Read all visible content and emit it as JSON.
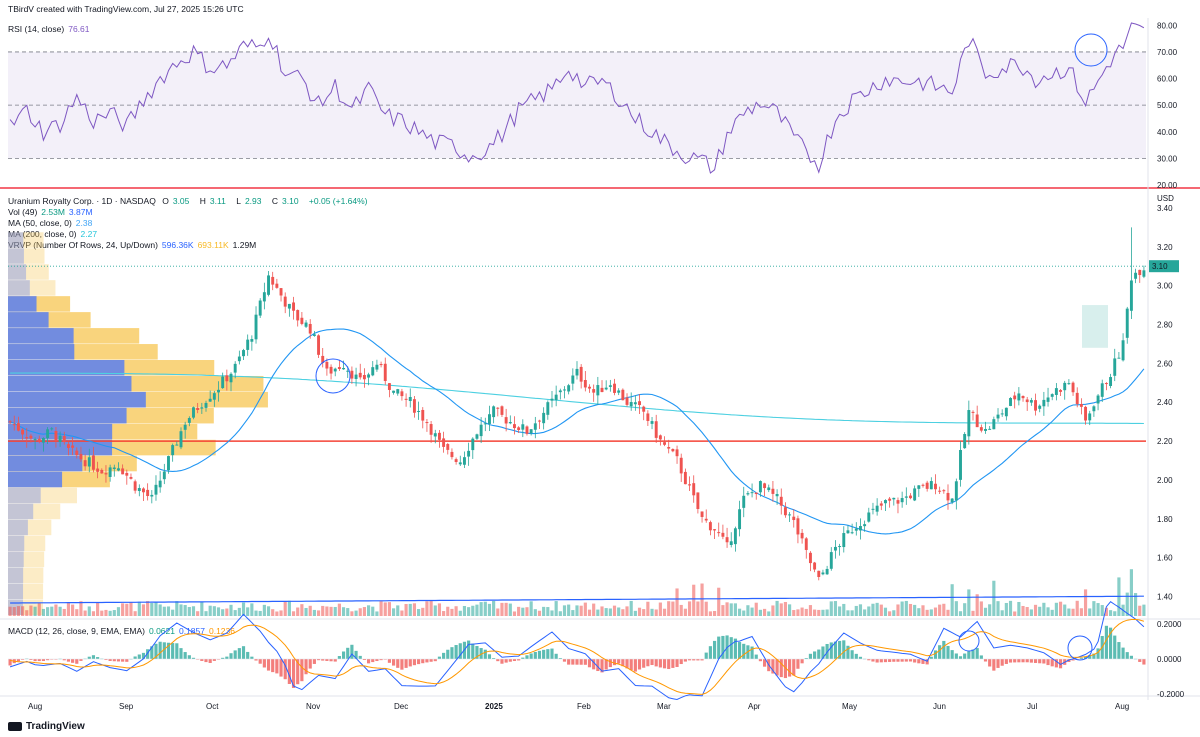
{
  "credit": "TBirdV created with TradingView.com, Jul 27, 2025 15:26 UTC",
  "brand": "TradingView",
  "rsi_panel": {
    "label": "RSI (14, close)",
    "value": "76.61",
    "ticks": [
      "80.00",
      "70.00",
      "60.00",
      "50.00",
      "40.00",
      "30.00",
      "20.00"
    ],
    "range": [
      20,
      82
    ],
    "overbought": 70,
    "mid": 50,
    "oversold": 30
  },
  "main_panel": {
    "title": "Uranium Royalty Corp. · 1D · NASDAQ",
    "ohlc": {
      "o_label": "O",
      "o": "3.05",
      "h_label": "H",
      "h": "3.11",
      "l_label": "L",
      "l": "2.93",
      "c_label": "C",
      "c": "3.10",
      "change": "+0.05 (+1.64%)"
    },
    "vol": {
      "label": "Vol (49)",
      "v1": "2.53M",
      "v2": "3.87M"
    },
    "ma50": {
      "label": "MA (50, close, 0)",
      "value": "2.38"
    },
    "ma200": {
      "label": "MA (200, close, 0)",
      "value": "2.27"
    },
    "vrvp": {
      "label": "VRVP (Number Of Rows, 24, Up/Down)",
      "up": "596.36K",
      "down": "693.11K",
      "total": "1.29M"
    },
    "currency": "USD",
    "last_price": "3.10",
    "price_ticks": [
      "3.40",
      "3.20",
      "3.00",
      "2.80",
      "2.60",
      "2.40",
      "2.20",
      "2.00",
      "1.80",
      "1.60",
      "1.40"
    ],
    "support_level": 2.2
  },
  "macd_panel": {
    "label": "MACD (12, 26, close, 9, EMA, EMA)",
    "v1": "0.0621",
    "v2": "0.1857",
    "v3": "0.1236",
    "ticks": [
      "0.2000",
      "0.0000",
      "-0.2000"
    ]
  },
  "x_axis": [
    "Aug",
    "Sep",
    "Oct",
    "Nov",
    "Dec",
    "2025",
    "Feb",
    "Mar",
    "Apr",
    "May",
    "Jun",
    "Jul",
    "Aug"
  ],
  "colors": {
    "up": "#26a69a",
    "down": "#ef5350",
    "rsi": "#7e57c2",
    "ma50": "#2196f3",
    "ma200": "#4dd0e1",
    "support": "#f44336",
    "macd": "#2962ff",
    "signal": "#ff9800",
    "vrvp_up": "#5b7ff0",
    "vrvp_down": "#f7c95c"
  },
  "chart_data": {
    "type": "candlestick",
    "price_anchors": [
      [
        0,
        2.3
      ],
      [
        6,
        2.2
      ],
      [
        10,
        2.25
      ],
      [
        14,
        2.15
      ],
      [
        18,
        2.1
      ],
      [
        22,
        2.05
      ],
      [
        26,
        2.08
      ],
      [
        30,
        1.97
      ],
      [
        34,
        1.9
      ],
      [
        38,
        2.1
      ],
      [
        42,
        2.3
      ],
      [
        46,
        2.4
      ],
      [
        50,
        2.48
      ],
      [
        54,
        2.58
      ],
      [
        58,
        2.75
      ],
      [
        62,
        3.05
      ],
      [
        65,
        2.95
      ],
      [
        68,
        2.85
      ],
      [
        72,
        2.78
      ],
      [
        76,
        2.55
      ],
      [
        80,
        2.6
      ],
      [
        84,
        2.5
      ],
      [
        88,
        2.6
      ],
      [
        92,
        2.45
      ],
      [
        96,
        2.4
      ],
      [
        100,
        2.3
      ],
      [
        104,
        2.15
      ],
      [
        108,
        2.1
      ],
      [
        112,
        2.25
      ],
      [
        116,
        2.35
      ],
      [
        120,
        2.3
      ],
      [
        124,
        2.25
      ],
      [
        128,
        2.35
      ],
      [
        132,
        2.45
      ],
      [
        136,
        2.55
      ],
      [
        140,
        2.45
      ],
      [
        144,
        2.5
      ],
      [
        148,
        2.4
      ],
      [
        152,
        2.35
      ],
      [
        156,
        2.2
      ],
      [
        160,
        2.1
      ],
      [
        164,
        1.9
      ],
      [
        166,
        1.8
      ],
      [
        169,
        1.75
      ],
      [
        172,
        1.65
      ],
      [
        176,
        1.9
      ],
      [
        180,
        1.97
      ],
      [
        184,
        1.9
      ],
      [
        188,
        1.78
      ],
      [
        191,
        1.62
      ],
      [
        194,
        1.48
      ],
      [
        198,
        1.65
      ],
      [
        202,
        1.75
      ],
      [
        206,
        1.82
      ],
      [
        210,
        1.88
      ],
      [
        214,
        1.9
      ],
      [
        218,
        1.95
      ],
      [
        222,
        1.98
      ],
      [
        226,
        1.9
      ],
      [
        230,
        2.35
      ],
      [
        234,
        2.25
      ],
      [
        238,
        2.35
      ],
      [
        242,
        2.45
      ],
      [
        246,
        2.38
      ],
      [
        250,
        2.45
      ],
      [
        254,
        2.5
      ],
      [
        258,
        2.3
      ],
      [
        260,
        2.4
      ],
      [
        264,
        2.55
      ],
      [
        267,
        2.7
      ],
      [
        269,
        3.05
      ],
      [
        272,
        3.1
      ]
    ],
    "rsi_anchors": [
      [
        0,
        42
      ],
      [
        4,
        48
      ],
      [
        8,
        40
      ],
      [
        12,
        43
      ],
      [
        16,
        53
      ],
      [
        20,
        44
      ],
      [
        24,
        47
      ],
      [
        28,
        42
      ],
      [
        32,
        52
      ],
      [
        36,
        60
      ],
      [
        40,
        66
      ],
      [
        44,
        70
      ],
      [
        48,
        64
      ],
      [
        52,
        65
      ],
      [
        56,
        72
      ],
      [
        60,
        72
      ],
      [
        62,
        78
      ],
      [
        66,
        62
      ],
      [
        70,
        60
      ],
      [
        74,
        50
      ],
      [
        78,
        57
      ],
      [
        82,
        48
      ],
      [
        86,
        56
      ],
      [
        90,
        46
      ],
      [
        94,
        44
      ],
      [
        98,
        40
      ],
      [
        102,
        36
      ],
      [
        106,
        35
      ],
      [
        110,
        31
      ],
      [
        114,
        33
      ],
      [
        118,
        39
      ],
      [
        122,
        48
      ],
      [
        126,
        52
      ],
      [
        130,
        56
      ],
      [
        134,
        64
      ],
      [
        138,
        57
      ],
      [
        142,
        59
      ],
      [
        146,
        53
      ],
      [
        150,
        45
      ],
      [
        154,
        40
      ],
      [
        158,
        35
      ],
      [
        162,
        31
      ],
      [
        166,
        29
      ],
      [
        169,
        26
      ],
      [
        172,
        39
      ],
      [
        176,
        47
      ],
      [
        180,
        51
      ],
      [
        184,
        47
      ],
      [
        188,
        38
      ],
      [
        191,
        32
      ],
      [
        194,
        28
      ],
      [
        198,
        45
      ],
      [
        202,
        52
      ],
      [
        206,
        56
      ],
      [
        210,
        60
      ],
      [
        214,
        59
      ],
      [
        218,
        59
      ],
      [
        222,
        57
      ],
      [
        226,
        55
      ],
      [
        230,
        75
      ],
      [
        234,
        62
      ],
      [
        238,
        64
      ],
      [
        242,
        66
      ],
      [
        246,
        60
      ],
      [
        250,
        62
      ],
      [
        254,
        64
      ],
      [
        258,
        51
      ],
      [
        260,
        56
      ],
      [
        264,
        67
      ],
      [
        267,
        72
      ],
      [
        269,
        79
      ],
      [
        272,
        77
      ]
    ],
    "ma50_range": [
      2.26,
      2.38
    ],
    "ma200_range": [
      2.55,
      2.27
    ]
  }
}
